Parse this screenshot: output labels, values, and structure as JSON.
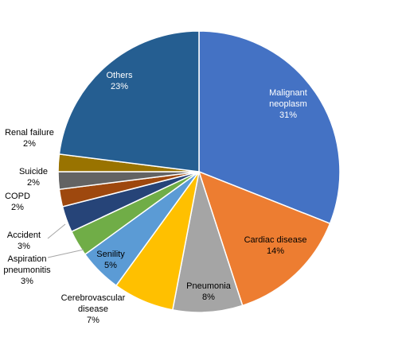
{
  "chart_data": {
    "type": "pie",
    "title": "",
    "series": [
      {
        "name": "",
        "categories": [
          "Malignant neoplasm",
          "Cardiac disease",
          "Pneumonia",
          "Cerebrovascular disease",
          "Senility",
          "Aspiration pneumonitis",
          "Accident",
          "COPD",
          "Suicide",
          "Renal failure",
          "Others"
        ],
        "values": [
          31,
          14,
          8,
          7,
          5,
          3,
          3,
          2,
          2,
          2,
          23
        ]
      }
    ],
    "slices": [
      {
        "category": "Malignant neoplasm",
        "label_lines": [
          "Malignant",
          "neoplasm",
          "31%"
        ],
        "value": 31,
        "color": "#4472c4",
        "text_color": "#ffffff"
      },
      {
        "category": "Cardiac disease",
        "label_lines": [
          "Cardiac disease",
          "14%"
        ],
        "value": 14,
        "color": "#ed7d31",
        "text_color": "#000000"
      },
      {
        "category": "Pneumonia",
        "label_lines": [
          "Pneumonia",
          "8%"
        ],
        "value": 8,
        "color": "#a5a5a5",
        "text_color": "#000000"
      },
      {
        "category": "Cerebrovascular disease",
        "label_lines": [
          "Cerebrovascular",
          "disease",
          "7%"
        ],
        "value": 7,
        "color": "#ffc000",
        "text_color": "#000000"
      },
      {
        "category": "Senility",
        "label_lines": [
          "Senility",
          "5%"
        ],
        "value": 5,
        "color": "#5b9bd5",
        "text_color": "#000000"
      },
      {
        "category": "Aspiration pneumonitis",
        "label_lines": [
          "Aspiration",
          "pneumonitis",
          "3%"
        ],
        "value": 3,
        "color": "#70ad47",
        "text_color": "#000000"
      },
      {
        "category": "Accident",
        "label_lines": [
          "Accident",
          "3%"
        ],
        "value": 3,
        "color": "#264478",
        "text_color": "#000000"
      },
      {
        "category": "COPD",
        "label_lines": [
          "COPD",
          "2%"
        ],
        "value": 2,
        "color": "#9e480e",
        "text_color": "#000000"
      },
      {
        "category": "Suicide",
        "label_lines": [
          "Suicide",
          "2%"
        ],
        "value": 2,
        "color": "#636363",
        "text_color": "#000000"
      },
      {
        "category": "Renal failure",
        "label_lines": [
          "Renal failure",
          "2%"
        ],
        "value": 2,
        "color": "#997300",
        "text_color": "#000000"
      },
      {
        "category": "Others",
        "label_lines": [
          "Others",
          "23%"
        ],
        "value": 23,
        "color": "#255e91",
        "text_color": "#ffffff"
      }
    ],
    "legend": "none",
    "data_labels": "category and percentage"
  }
}
